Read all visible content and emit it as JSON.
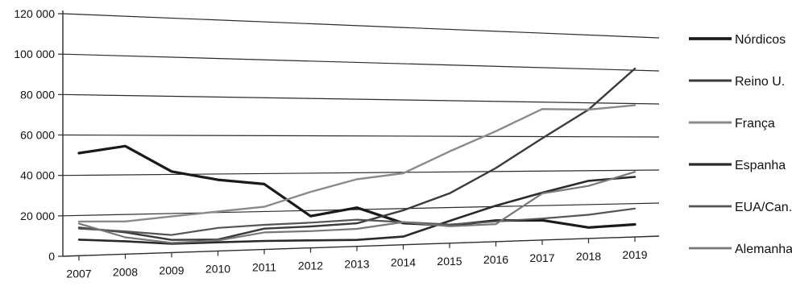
{
  "chart_data": {
    "type": "line",
    "title": "",
    "xlabel": "",
    "ylabel": "",
    "x": [
      "2007",
      "2008",
      "2009",
      "2010",
      "2011",
      "2012",
      "2013",
      "2014",
      "2015",
      "2016",
      "2017",
      "2018",
      "2019"
    ],
    "ylim": [
      0,
      120000
    ],
    "yticks": [
      {
        "value": 0,
        "label": "0"
      },
      {
        "value": 20000,
        "label": "20 000"
      },
      {
        "value": 40000,
        "label": "40 000"
      },
      {
        "value": 60000,
        "label": "60 000"
      },
      {
        "value": 80000,
        "label": "80 000"
      },
      {
        "value": 100000,
        "label": "100 000"
      },
      {
        "value": 120000,
        "label": "120 000"
      }
    ],
    "grid": true,
    "legend_position": "right",
    "series": [
      {
        "name": "Nórdicos",
        "color": "#1a1a1a",
        "width": 3.2,
        "values": [
          51000,
          54500,
          41500,
          37000,
          34500,
          17000,
          21000,
          12000,
          10000,
          12000,
          11500,
          6500,
          7500
        ]
      },
      {
        "name": "Reino U.",
        "color": "#3a3a3a",
        "width": 2.4,
        "values": [
          14000,
          11000,
          6500,
          6000,
          11000,
          11500,
          12500,
          19000,
          28000,
          42000,
          59000,
          76000,
          101000
        ]
      },
      {
        "name": "França",
        "color": "#8a8a8a",
        "width": 2.4,
        "values": [
          17000,
          16500,
          18500,
          20500,
          22500,
          30000,
          36500,
          39500,
          51500,
          63000,
          76000,
          76000,
          79000
        ]
      },
      {
        "name": "Espanha",
        "color": "#2a2a2a",
        "width": 2.6,
        "values": [
          8000,
          6500,
          4500,
          4500,
          4500,
          4000,
          3500,
          4500,
          12500,
          20500,
          27500,
          34000,
          36000
        ]
      },
      {
        "name": "EUA/Can.",
        "color": "#555555",
        "width": 2.2,
        "values": [
          13500,
          11500,
          9000,
          12000,
          13000,
          13500,
          14500,
          12500,
          10500,
          11500,
          12500,
          14000,
          17000
        ]
      },
      {
        "name": "Alemanha",
        "color": "#777777",
        "width": 2.2,
        "values": [
          16000,
          8500,
          5000,
          5500,
          9000,
          9000,
          9500,
          12500,
          9500,
          10000,
          27000,
          31000,
          39000
        ]
      }
    ]
  }
}
